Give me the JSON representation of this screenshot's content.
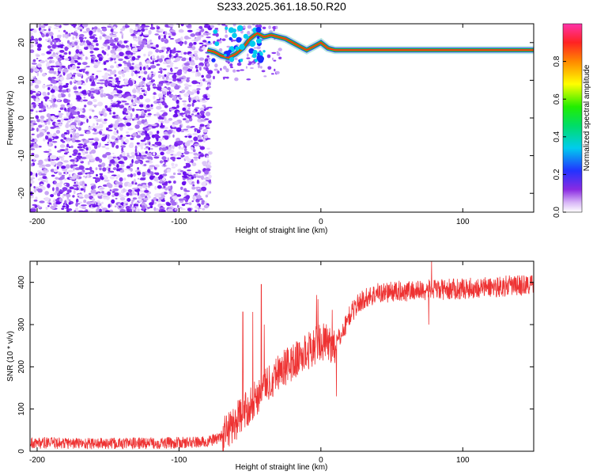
{
  "title": "S233.2025.361.18.50.R20",
  "colors": {
    "axis": "#000000",
    "snr_line": "#ee3333",
    "scatter_purple": "#7a22ee",
    "scatter_light": "#c9a6f5"
  },
  "chart_data": [
    {
      "type": "heatmap",
      "title": "S233.2025.361.18.50.R20",
      "xlabel": "Height of straight line (km)",
      "ylabel": "Frequency (Hz)",
      "xlim": [
        -205,
        150
      ],
      "ylim": [
        -25,
        25
      ],
      "xticks": [
        -200,
        -100,
        0,
        100
      ],
      "yticks": [
        -20,
        -10,
        0,
        10,
        20
      ],
      "noise_region": {
        "x_from": -205,
        "x_to": -78
      },
      "carrier_track": {
        "x": [
          -80,
          -75,
          -70,
          -65,
          -60,
          -55,
          -50,
          -45,
          -40,
          -35,
          -30,
          -25,
          -20,
          -15,
          -10,
          -5,
          0,
          5,
          10,
          20,
          40,
          60,
          80,
          100,
          120,
          150
        ],
        "y": [
          18,
          17.5,
          16.5,
          16,
          17,
          18.5,
          21,
          22.5,
          21.5,
          22,
          21.5,
          21,
          20,
          19,
          18,
          19,
          20,
          18.5,
          18,
          18,
          18,
          18,
          18,
          18,
          18,
          18
        ]
      },
      "colorbar": {
        "label": "Normalized spectral amplitude",
        "range": [
          0.0,
          1.0
        ],
        "ticks": [
          "0.0",
          "0.2",
          "0.4",
          "0.6",
          "0.8"
        ],
        "tick_values": [
          0.0,
          0.2,
          0.4,
          0.6,
          0.8
        ]
      }
    },
    {
      "type": "line",
      "xlabel": "Height of straight line (km)",
      "ylabel": "SNR (10 * v/v)",
      "xlim": [
        -205,
        150
      ],
      "ylim": [
        0,
        450
      ],
      "xticks": [
        -200,
        -100,
        0,
        100
      ],
      "yticks": [
        0,
        100,
        200,
        300,
        400
      ],
      "trend": {
        "x": [
          -205,
          -150,
          -100,
          -80,
          -70,
          -60,
          -50,
          -40,
          -30,
          -20,
          -10,
          0,
          10,
          15,
          20,
          25,
          30,
          40,
          60,
          80,
          100,
          150
        ],
        "y": [
          20,
          18,
          20,
          22,
          35,
          70,
          110,
          150,
          190,
          210,
          235,
          260,
          250,
          280,
          320,
          345,
          360,
          375,
          380,
          382,
          385,
          395
        ]
      },
      "noise_amplitude": [
        {
          "x_from": -205,
          "x_to": -70,
          "amp": 14
        },
        {
          "x_from": -70,
          "x_to": 10,
          "amp": 45
        },
        {
          "x_from": 10,
          "x_to": 150,
          "amp": 25
        }
      ],
      "spikes": [
        {
          "x": -42,
          "y": 395
        },
        {
          "x": -40,
          "y": 300
        },
        {
          "x": -55,
          "y": 330
        },
        {
          "x": -48,
          "y": 330
        },
        {
          "x": -3,
          "y": 370
        },
        {
          "x": -2,
          "y": 360
        },
        {
          "x": 8,
          "y": 335
        },
        {
          "x": 11,
          "y": 130
        },
        {
          "x": 78,
          "y": 450
        },
        {
          "x": 76,
          "y": 300
        }
      ]
    }
  ]
}
